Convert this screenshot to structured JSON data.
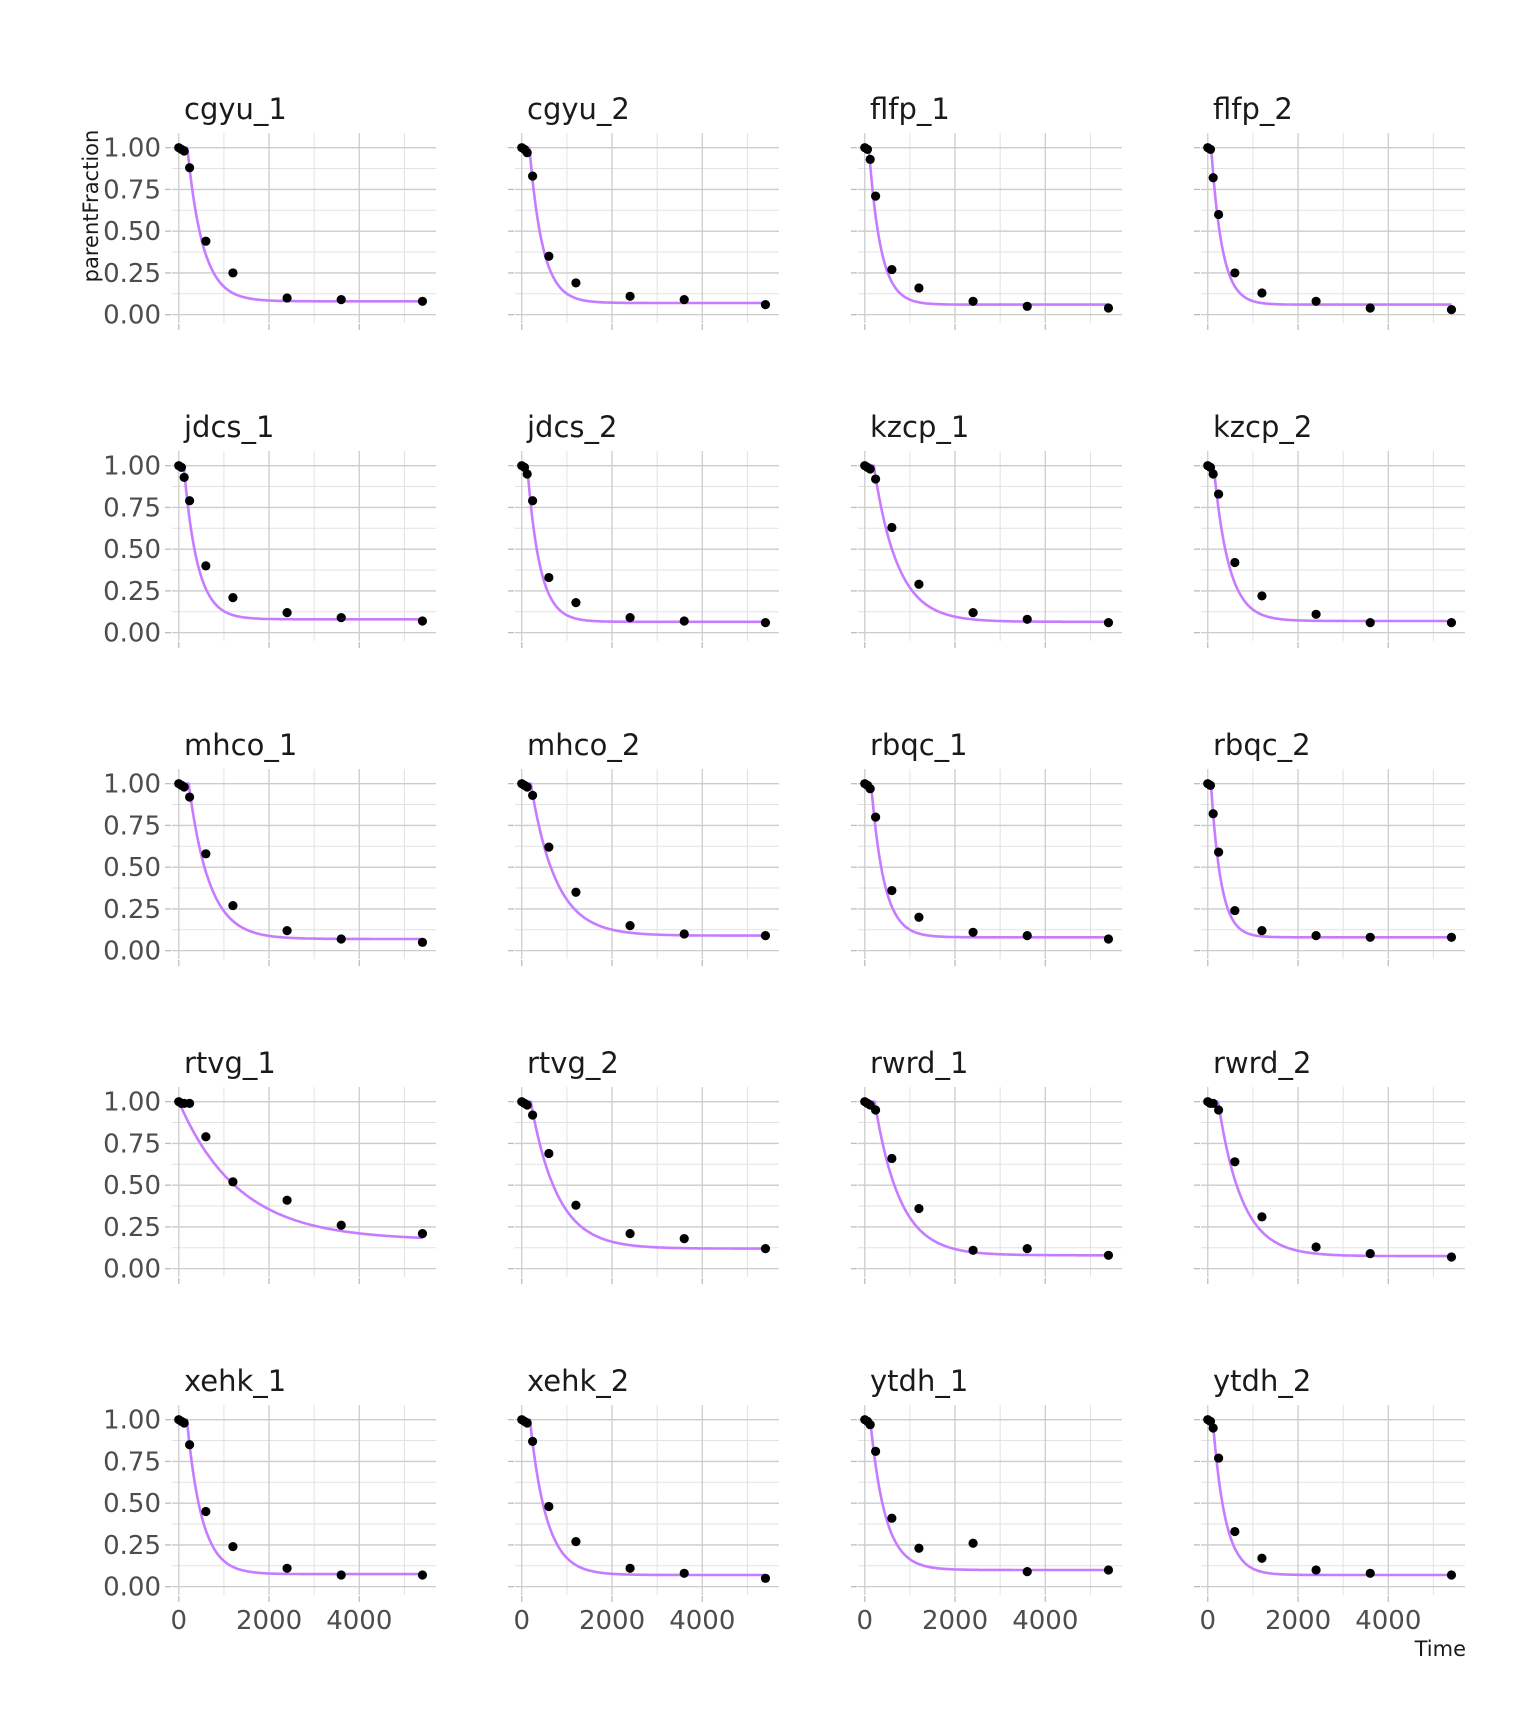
{
  "chart_data": {
    "type": "scatter",
    "title": "",
    "xlabel": "Time",
    "ylabel": "parentFraction",
    "xlim": [
      -150,
      5700
    ],
    "ylim": [
      -0.02,
      1.04
    ],
    "x_ticks": [
      0,
      2000,
      4000
    ],
    "x_tick_labels": [
      "0",
      "2000",
      "4000"
    ],
    "y_ticks": [
      0,
      0.25,
      0.5,
      0.75,
      1
    ],
    "y_tick_labels": [
      "0.00",
      "0.25",
      "0.50",
      "0.75",
      "1.00"
    ],
    "grid": true,
    "layout": {
      "rows": 5,
      "cols": 4
    },
    "colors": {
      "fit_line": "#c77cff",
      "points": "#000000"
    },
    "x": [
      0,
      60,
      120,
      240,
      600,
      1200,
      2400,
      3600,
      5400
    ],
    "panels": [
      {
        "name": "cgyu_1",
        "values": [
          1.0,
          0.99,
          0.98,
          0.88,
          0.44,
          0.25,
          0.1,
          0.09,
          0.08
        ],
        "fit": {
          "t0": 190,
          "k": 0.0029,
          "f": 0.08
        }
      },
      {
        "name": "cgyu_2",
        "values": [
          1.0,
          0.99,
          0.97,
          0.83,
          0.35,
          0.19,
          0.11,
          0.09,
          0.06
        ],
        "fit": {
          "t0": 170,
          "k": 0.0034,
          "f": 0.07
        }
      },
      {
        "name": "flfp_1",
        "values": [
          1.0,
          0.99,
          0.93,
          0.71,
          0.27,
          0.16,
          0.08,
          0.05,
          0.04
        ],
        "fit": {
          "t0": 90,
          "k": 0.0038,
          "f": 0.06
        }
      },
      {
        "name": "flfp_2",
        "values": [
          1.0,
          0.99,
          0.82,
          0.6,
          0.25,
          0.13,
          0.08,
          0.04,
          0.03
        ],
        "fit": {
          "t0": 75,
          "k": 0.0041,
          "f": 0.06
        }
      },
      {
        "name": "jdcs_1",
        "values": [
          1.0,
          0.99,
          0.93,
          0.79,
          0.4,
          0.21,
          0.12,
          0.09,
          0.07
        ],
        "fit": {
          "t0": 110,
          "k": 0.0033,
          "f": 0.08
        }
      },
      {
        "name": "jdcs_2",
        "values": [
          1.0,
          0.99,
          0.95,
          0.79,
          0.33,
          0.18,
          0.09,
          0.07,
          0.06
        ],
        "fit": {
          "t0": 120,
          "k": 0.0036,
          "f": 0.065
        }
      },
      {
        "name": "kzcp_1",
        "values": [
          1.0,
          0.99,
          0.98,
          0.92,
          0.63,
          0.29,
          0.12,
          0.08,
          0.06
        ],
        "fit": {
          "t0": 200,
          "k": 0.0019,
          "f": 0.065
        }
      },
      {
        "name": "kzcp_2",
        "values": [
          1.0,
          0.99,
          0.95,
          0.83,
          0.42,
          0.22,
          0.11,
          0.06,
          0.06
        ],
        "fit": {
          "t0": 130,
          "k": 0.003,
          "f": 0.07
        }
      },
      {
        "name": "mhco_1",
        "values": [
          1.0,
          0.99,
          0.98,
          0.92,
          0.58,
          0.27,
          0.12,
          0.07,
          0.05
        ],
        "fit": {
          "t0": 220,
          "k": 0.0022,
          "f": 0.07
        }
      },
      {
        "name": "mhco_2",
        "values": [
          1.0,
          0.99,
          0.98,
          0.93,
          0.62,
          0.35,
          0.15,
          0.1,
          0.09
        ],
        "fit": {
          "t0": 200,
          "k": 0.0018,
          "f": 0.09
        }
      },
      {
        "name": "rbqc_1",
        "values": [
          1.0,
          0.99,
          0.97,
          0.8,
          0.36,
          0.2,
          0.11,
          0.09,
          0.07
        ],
        "fit": {
          "t0": 140,
          "k": 0.0035,
          "f": 0.08
        }
      },
      {
        "name": "rbqc_2",
        "values": [
          1.0,
          0.99,
          0.82,
          0.59,
          0.24,
          0.12,
          0.09,
          0.08,
          0.08
        ],
        "fit": {
          "t0": 70,
          "k": 0.0045,
          "f": 0.08
        }
      },
      {
        "name": "rtvg_1",
        "values": [
          1.0,
          0.99,
          0.99,
          0.99,
          0.79,
          0.52,
          0.41,
          0.26,
          0.21
        ],
        "fit": {
          "t0": 0,
          "k": 0.00075,
          "f": 0.17
        }
      },
      {
        "name": "rtvg_2",
        "values": [
          1.0,
          0.99,
          0.98,
          0.92,
          0.69,
          0.38,
          0.21,
          0.18,
          0.12
        ],
        "fit": {
          "t0": 200,
          "k": 0.0017,
          "f": 0.12
        }
      },
      {
        "name": "rwrd_1",
        "values": [
          1.0,
          0.99,
          0.98,
          0.95,
          0.66,
          0.36,
          0.11,
          0.12,
          0.08
        ],
        "fit": {
          "t0": 220,
          "k": 0.0018,
          "f": 0.08
        }
      },
      {
        "name": "rwrd_2",
        "values": [
          1.0,
          0.99,
          0.99,
          0.95,
          0.64,
          0.31,
          0.13,
          0.09,
          0.07
        ],
        "fit": {
          "t0": 230,
          "k": 0.0019,
          "f": 0.075
        }
      },
      {
        "name": "xehk_1",
        "values": [
          1.0,
          0.99,
          0.98,
          0.85,
          0.45,
          0.24,
          0.11,
          0.07,
          0.07
        ],
        "fit": {
          "t0": 180,
          "k": 0.003,
          "f": 0.075
        }
      },
      {
        "name": "xehk_2",
        "values": [
          1.0,
          0.99,
          0.98,
          0.87,
          0.48,
          0.27,
          0.11,
          0.08,
          0.05
        ],
        "fit": {
          "t0": 180,
          "k": 0.0027,
          "f": 0.07
        }
      },
      {
        "name": "ytdh_1",
        "values": [
          1.0,
          0.99,
          0.97,
          0.81,
          0.41,
          0.23,
          0.26,
          0.09,
          0.1
        ],
        "fit": {
          "t0": 120,
          "k": 0.003,
          "f": 0.1
        }
      },
      {
        "name": "ytdh_2",
        "values": [
          1.0,
          0.99,
          0.95,
          0.77,
          0.33,
          0.17,
          0.1,
          0.08,
          0.07
        ],
        "fit": {
          "t0": 110,
          "k": 0.0036,
          "f": 0.07
        }
      }
    ]
  }
}
